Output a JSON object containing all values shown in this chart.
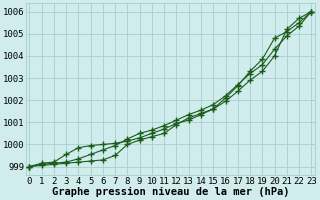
{
  "background_color": "#d0ecec",
  "grid_color": "#a8cece",
  "line_color": "#1a5c1a",
  "xlabel": "Graphe pression niveau de la mer (hPa)",
  "xlabel_fontsize": 7.5,
  "tick_fontsize": 6.5,
  "ytick_labels": [
    999,
    1000,
    1001,
    1002,
    1003,
    1004,
    1005,
    1006
  ],
  "ylim": [
    998.6,
    1006.4
  ],
  "xlim": [
    -0.3,
    23.3
  ],
  "xtick_labels": [
    0,
    1,
    2,
    3,
    4,
    5,
    6,
    7,
    8,
    9,
    10,
    11,
    12,
    13,
    14,
    15,
    16,
    17,
    18,
    19,
    20,
    21,
    22,
    23
  ],
  "series": [
    [
      999.0,
      999.05,
      999.1,
      999.15,
      999.2,
      999.25,
      999.3,
      999.5,
      1000.0,
      1000.2,
      1000.35,
      1000.5,
      1000.9,
      1001.2,
      1001.4,
      1001.6,
      1001.95,
      1002.4,
      1002.9,
      1003.3,
      1004.0,
      1005.2,
      1005.7,
      1006.0
    ],
    [
      999.0,
      999.1,
      999.15,
      999.2,
      999.35,
      999.55,
      999.75,
      999.95,
      1000.25,
      1000.5,
      1000.65,
      1000.85,
      1001.1,
      1001.35,
      1001.55,
      1001.8,
      1002.2,
      1002.7,
      1003.2,
      1003.6,
      1004.3,
      1004.9,
      1005.35,
      1006.0
    ],
    [
      999.0,
      999.15,
      999.2,
      999.55,
      999.85,
      999.95,
      1000.0,
      1000.05,
      1000.15,
      1000.3,
      1000.5,
      1000.7,
      1000.95,
      1001.1,
      1001.35,
      1001.6,
      1002.1,
      1002.65,
      1003.3,
      1003.85,
      1004.8,
      1005.1,
      1005.5,
      1006.0
    ]
  ]
}
